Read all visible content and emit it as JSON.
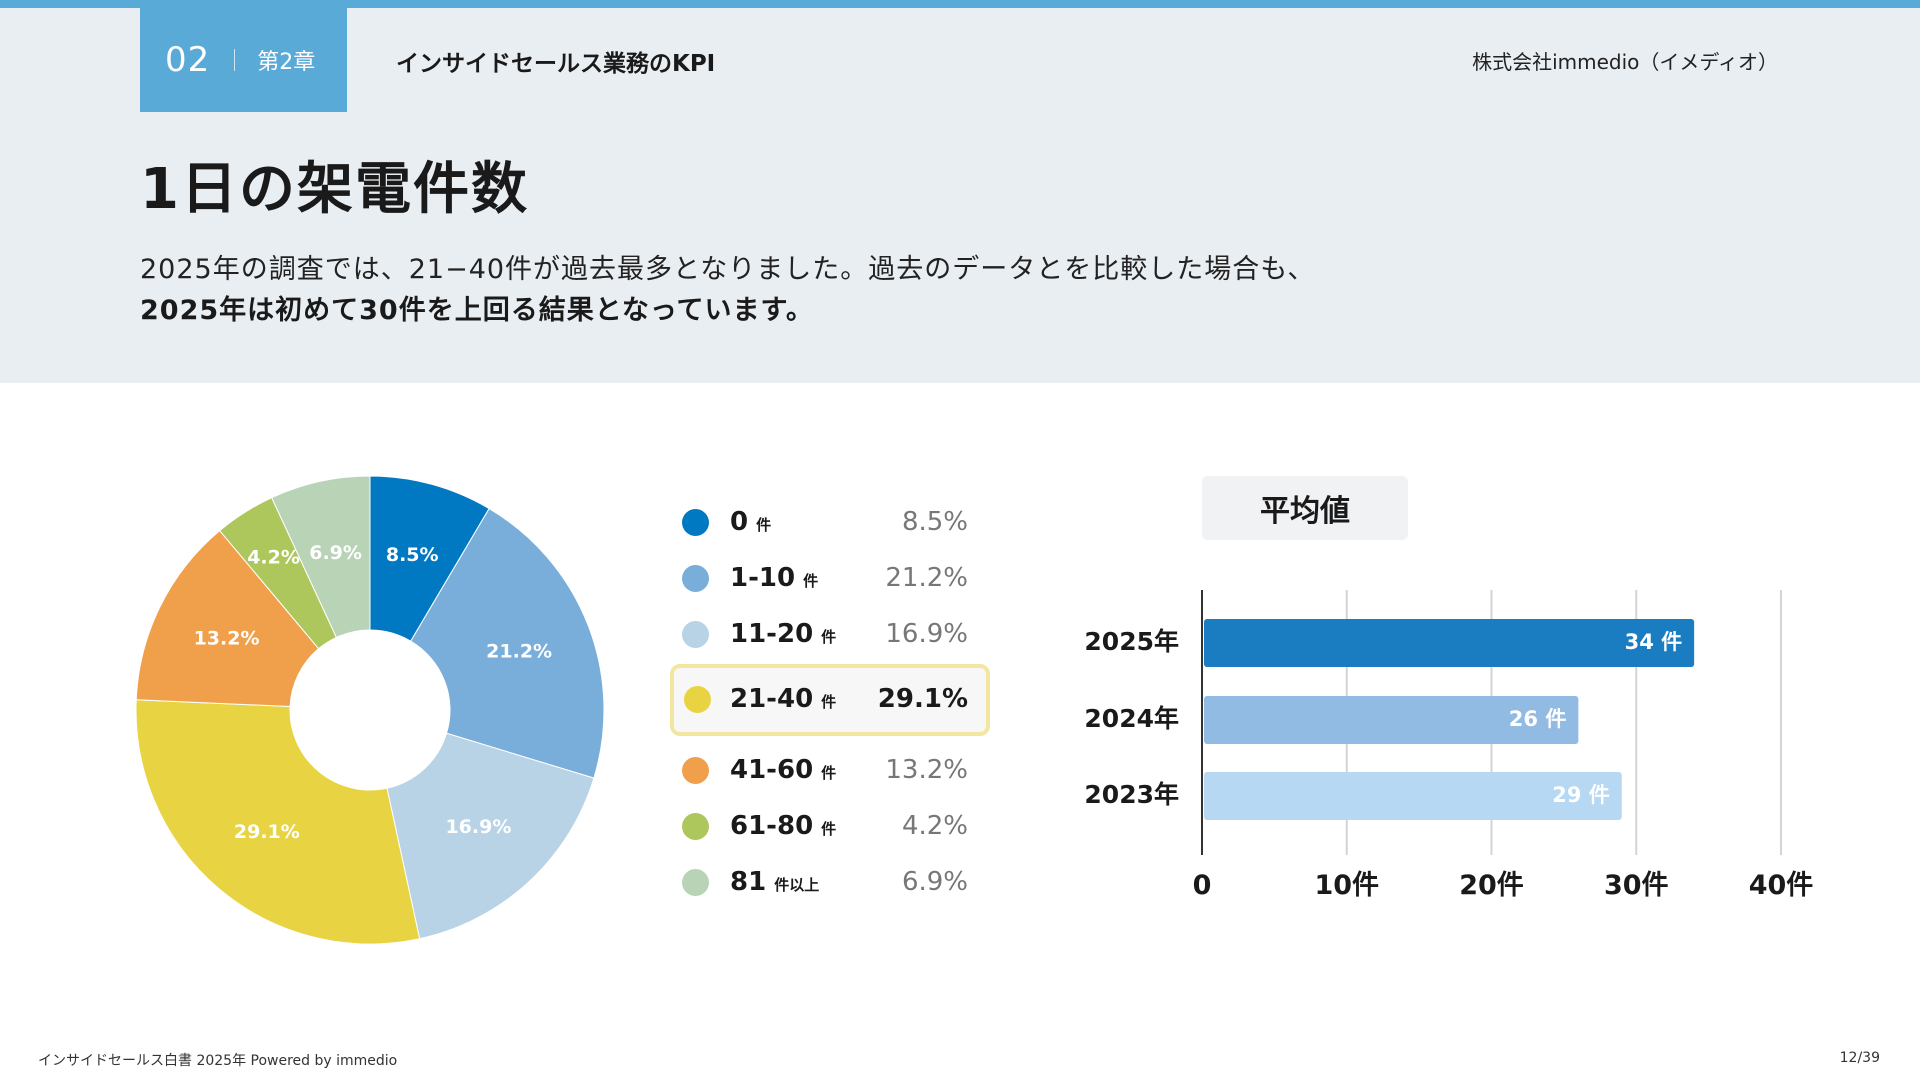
{
  "header": {
    "chapter_num": "02",
    "chapter_label": "第2章",
    "section_title": "インサイドセールス業務のKPI",
    "company": "株式会社immedio（イメディオ）"
  },
  "page": {
    "title": "1日の架電件数",
    "desc_line1": "2025年の調査では、21−40件が過去最多となりました。過去のデータとを比較した場合も、",
    "desc_line2": "2025年は初めて30件を上回る結果となっています。"
  },
  "footer": {
    "left": "インサイドセールス白書 2025年 Powered by immedio",
    "right": "12/39"
  },
  "legend": [
    {
      "label": "0",
      "unit": "件",
      "pct": "8.5%",
      "color": "#0079c2",
      "highlight": false
    },
    {
      "label": "1-10",
      "unit": "件",
      "pct": "21.2%",
      "color": "#79aedb",
      "highlight": false
    },
    {
      "label": "11-20",
      "unit": "件",
      "pct": "16.9%",
      "color": "#b8d3e6",
      "highlight": false
    },
    {
      "label": "21-40",
      "unit": "件",
      "pct": "29.1%",
      "color": "#e8d342",
      "highlight": true
    },
    {
      "label": "41-60",
      "unit": "件",
      "pct": "13.2%",
      "color": "#f0a04a",
      "highlight": false
    },
    {
      "label": "61-80",
      "unit": "件",
      "pct": "4.2%",
      "color": "#adc75c",
      "highlight": false
    },
    {
      "label": "81",
      "unit": "件以上",
      "pct": "6.9%",
      "color": "#b8d3b6",
      "highlight": false
    }
  ],
  "chart_data": [
    {
      "type": "pie",
      "title": "1日の架電件数",
      "categories": [
        "0件",
        "1-10件",
        "11-20件",
        "21-40件",
        "41-60件",
        "61-80件",
        "81件以上"
      ],
      "values": [
        8.5,
        21.2,
        16.9,
        29.1,
        13.2,
        4.2,
        6.9
      ],
      "labels": [
        "8.5%",
        "21.2%",
        "16.9%",
        "29.1%",
        "13.2%",
        "4.2%",
        "6.9%"
      ],
      "colors": [
        "#0079c2",
        "#79aedb",
        "#b8d3e6",
        "#e8d342",
        "#f0a04a",
        "#adc75c",
        "#b8d3b6"
      ],
      "donut": true
    },
    {
      "type": "bar",
      "orientation": "horizontal",
      "title": "平均値",
      "categories": [
        "2025年",
        "2024年",
        "2023年"
      ],
      "values": [
        34,
        26,
        29
      ],
      "value_labels": [
        "34 件",
        "26 件",
        "29 件"
      ],
      "colors": [
        "#1a7cc1",
        "#92bbe3",
        "#b7d8f3"
      ],
      "xlim": [
        0,
        40
      ],
      "xticks": [
        0,
        10,
        20,
        30,
        40
      ],
      "xtick_labels": [
        "0",
        "10件",
        "20件",
        "30件",
        "40件"
      ],
      "grid": true
    }
  ]
}
